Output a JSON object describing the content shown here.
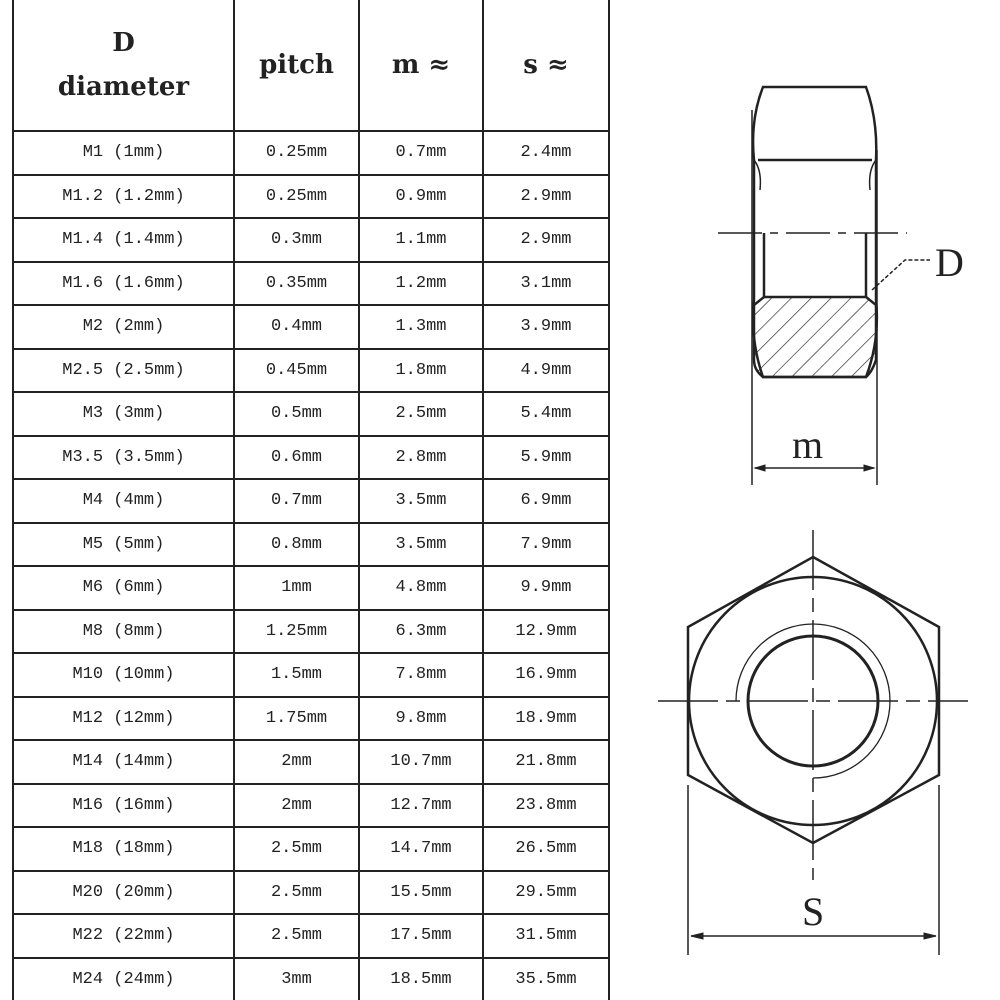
{
  "table": {
    "headers": {
      "diameter_top": "D",
      "diameter_bottom": "diameter",
      "pitch": "pitch",
      "m": "m ≈",
      "s": "s ≈"
    },
    "rows": [
      [
        "M1 (1mm)",
        "0.25mm",
        "0.7mm",
        "2.4mm"
      ],
      [
        "M1.2 (1.2mm)",
        "0.25mm",
        "0.9mm",
        "2.9mm"
      ],
      [
        "M1.4 (1.4mm)",
        "0.3mm",
        "1.1mm",
        "2.9mm"
      ],
      [
        "M1.6 (1.6mm)",
        "0.35mm",
        "1.2mm",
        "3.1mm"
      ],
      [
        "M2 (2mm)",
        "0.4mm",
        "1.3mm",
        "3.9mm"
      ],
      [
        "M2.5 (2.5mm)",
        "0.45mm",
        "1.8mm",
        "4.9mm"
      ],
      [
        "M3 (3mm)",
        "0.5mm",
        "2.5mm",
        "5.4mm"
      ],
      [
        "M3.5 (3.5mm)",
        "0.6mm",
        "2.8mm",
        "5.9mm"
      ],
      [
        "M4 (4mm)",
        "0.7mm",
        "3.5mm",
        "6.9mm"
      ],
      [
        "M5 (5mm)",
        "0.8mm",
        "3.5mm",
        "7.9mm"
      ],
      [
        "M6 (6mm)",
        "1mm",
        "4.8mm",
        "9.9mm"
      ],
      [
        "M8 (8mm)",
        "1.25mm",
        "6.3mm",
        "12.9mm"
      ],
      [
        "M10 (10mm)",
        "1.5mm",
        "7.8mm",
        "16.9mm"
      ],
      [
        "M12 (12mm)",
        "1.75mm",
        "9.8mm",
        "18.9mm"
      ],
      [
        "M14 (14mm)",
        "2mm",
        "10.7mm",
        "21.8mm"
      ],
      [
        "M16 (16mm)",
        "2mm",
        "12.7mm",
        "23.8mm"
      ],
      [
        "M18 (18mm)",
        "2.5mm",
        "14.7mm",
        "26.5mm"
      ],
      [
        "M20 (20mm)",
        "2.5mm",
        "15.5mm",
        "29.5mm"
      ],
      [
        "M22 (22mm)",
        "2.5mm",
        "17.5mm",
        "31.5mm"
      ],
      [
        "M24 (24mm)",
        "3mm",
        "18.5mm",
        "35.5mm"
      ]
    ]
  },
  "drawing": {
    "label_d": "D",
    "label_m": "m",
    "label_s": "S",
    "line_color": "#222222"
  }
}
